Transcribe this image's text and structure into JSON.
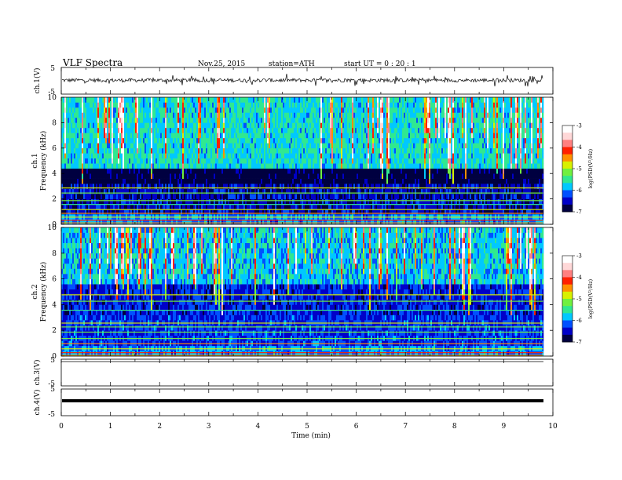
{
  "header": {
    "title": "VLF  Spectra",
    "date": "Nov.25, 2015",
    "station": "station=ATH",
    "start": "start  UT  =   0  : 20 : 1"
  },
  "x_axis": {
    "label": "Time  (min)",
    "ticks": [
      "0",
      "1",
      "2",
      "3",
      "4",
      "5",
      "6",
      "7",
      "8",
      "9",
      "10"
    ]
  },
  "channels": {
    "ch1": {
      "label": "ch.1(V)",
      "ticks": [
        "5",
        "-5"
      ]
    },
    "ch3": {
      "label": "ch.3(V)",
      "ticks": [
        "5",
        "-5"
      ]
    },
    "ch4": {
      "label": "ch.4(V)",
      "ticks": [
        "5",
        "-5"
      ]
    }
  },
  "spectrograms": {
    "s1": {
      "label_top": "ch.1",
      "label_bottom": "Frequency  (kHz)",
      "yticks": [
        "10",
        "8",
        "6",
        "4",
        "2",
        "0"
      ]
    },
    "s2": {
      "label_top": "ch.2",
      "label_bottom": "Frequency  (kHz)",
      "yticks": [
        "10",
        "8",
        "6",
        "4",
        "2",
        "0"
      ]
    }
  },
  "colorbar": {
    "label": "log(PSD(V²/Hz)",
    "ticks": [
      "-3",
      "-4",
      "-5",
      "-6",
      "-7"
    ],
    "colors": [
      "#000040",
      "#0000c8",
      "#0050ff",
      "#00c8ff",
      "#30e890",
      "#70f040",
      "#d8f000",
      "#ff9000",
      "#ff2000",
      "#ff8080",
      "#ffd8d8",
      "#ffffff"
    ]
  },
  "chart_data": [
    {
      "type": "line",
      "title": "ch.1(V)",
      "x_range": [
        0,
        10
      ],
      "ylim": [
        -5,
        5
      ],
      "data_extent_minutes": 9.8,
      "series": [
        {
          "values_approx": "noisy waveform centered near 0 V, spikes to about ±2 V"
        }
      ]
    },
    {
      "type": "heatmap",
      "title": "ch.1",
      "x_range": [
        0,
        10
      ],
      "ylim": [
        0,
        10
      ],
      "color_range": [
        -7,
        -3
      ],
      "structure": {
        "above_4kHz": "mostly -5.5 to -6 (green/cyan) with vertical bursts to -3.5 (red/yellow)",
        "3_to_4kHz": "dark band about -7",
        "below_3kHz": "-6.5 to -7 (blue) with horizontal carrier lines near -5"
      }
    },
    {
      "type": "heatmap",
      "title": "ch.2",
      "x_range": [
        0,
        10
      ],
      "ylim": [
        0,
        10
      ],
      "color_range": [
        -7,
        -3
      ],
      "structure": {
        "above_6kHz": "mostly -5.5 to -6 with vertical bursts",
        "3_to_5kHz": "blue band about -6.5",
        "below_3kHz": "blue with horizontal carrier lines near -5"
      }
    },
    {
      "type": "line",
      "title": "ch.3(V)",
      "x_range": [
        0,
        10
      ],
      "ylim": [
        -5,
        5
      ],
      "series": [
        {
          "values_approx": "flat at about 0 V"
        }
      ]
    },
    {
      "type": "line",
      "title": "ch.4(V)",
      "x_range": [
        0,
        10
      ],
      "ylim": [
        -5,
        5
      ],
      "series": [
        {
          "values_approx": "flat at about 0 V"
        }
      ]
    }
  ]
}
